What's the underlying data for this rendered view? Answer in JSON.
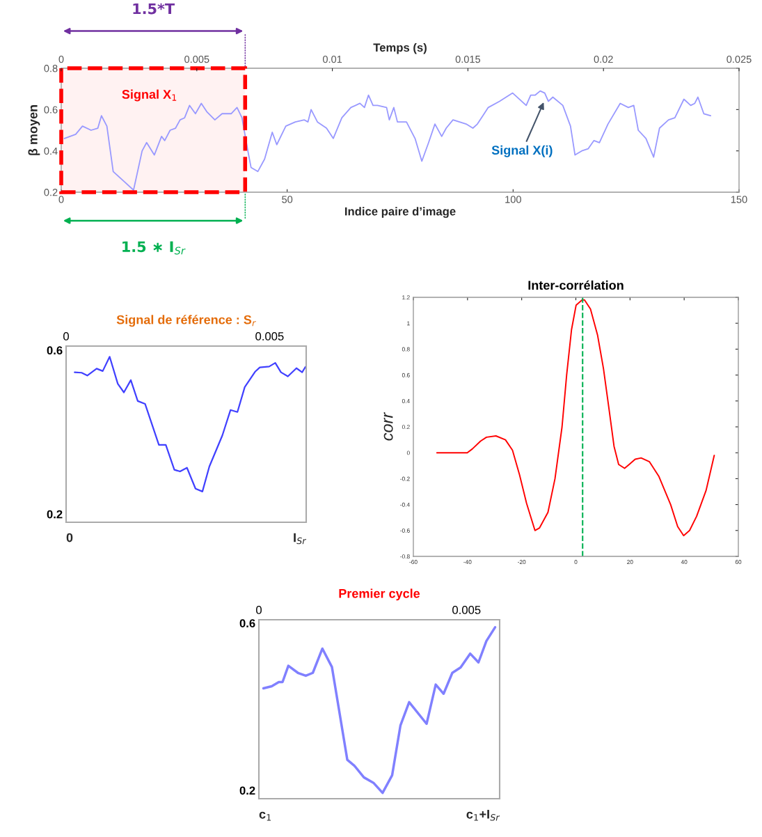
{
  "chart_data": [
    {
      "type": "line",
      "xlabel": "Indice paire d’image",
      "x2label": "Temps (s)",
      "ylabel": "β moyen",
      "x": [
        0.7,
        3.2,
        4.7,
        6.6,
        8.1,
        8.9,
        10.1,
        11.5,
        14,
        16,
        17.9,
        18.9,
        20.6,
        22.2,
        22.9,
        24.1,
        25.3,
        26.3,
        27.3,
        28.4,
        29.7,
        31,
        32.2,
        34,
        35.6,
        37.6,
        38.9,
        40,
        41.3,
        42,
        43.5,
        45,
        46.7,
        47.7,
        49.7,
        51.8,
        53.8,
        54.6,
        55.3,
        56.7,
        58.7,
        60.2,
        62.1,
        64.1,
        66.1,
        67.1,
        68,
        69,
        70,
        72,
        72.6,
        73.6,
        74.4,
        76.4,
        78.3,
        79.8,
        81.3,
        82.7,
        84.2,
        85.2,
        86.7,
        89.6,
        91.1,
        92.1,
        93.3,
        94.5,
        97,
        99.9,
        102.9,
        103.9,
        104.9,
        106,
        107,
        107.8,
        108.8,
        111,
        112.7,
        113.7,
        115.2,
        116.6,
        117.9,
        119.1,
        121,
        123.7,
        125.5,
        126.7,
        127.7,
        129.4,
        131.1,
        132.4,
        134.4,
        135.8,
        137.8,
        139.3,
        140.2,
        140.9,
        142.2,
        143.7
      ],
      "series": [
        {
          "color": "#9999ff",
          "values": [
            0.46,
            0.48,
            0.52,
            0.5,
            0.51,
            0.57,
            0.52,
            0.3,
            0.25,
            0.21,
            0.4,
            0.44,
            0.38,
            0.47,
            0.45,
            0.5,
            0.51,
            0.55,
            0.56,
            0.62,
            0.58,
            0.63,
            0.59,
            0.55,
            0.58,
            0.58,
            0.61,
            0.56,
            0.4,
            0.32,
            0.3,
            0.36,
            0.49,
            0.43,
            0.52,
            0.54,
            0.55,
            0.54,
            0.6,
            0.54,
            0.51,
            0.46,
            0.56,
            0.61,
            0.63,
            0.61,
            0.67,
            0.62,
            0.62,
            0.61,
            0.55,
            0.61,
            0.54,
            0.54,
            0.46,
            0.35,
            0.44,
            0.53,
            0.47,
            0.51,
            0.55,
            0.53,
            0.51,
            0.53,
            0.57,
            0.61,
            0.64,
            0.68,
            0.62,
            0.67,
            0.67,
            0.69,
            0.68,
            0.64,
            0.66,
            0.62,
            0.52,
            0.38,
            0.4,
            0.41,
            0.45,
            0.44,
            0.53,
            0.63,
            0.61,
            0.62,
            0.5,
            0.46,
            0.37,
            0.51,
            0.55,
            0.56,
            0.65,
            0.62,
            0.63,
            0.66,
            0.58,
            0.57
          ]
        }
      ],
      "xlim": [
        0,
        150
      ],
      "xticks": [
        0,
        50,
        100,
        150
      ],
      "x2lim": [
        0,
        0.025
      ],
      "x2ticks": [
        0,
        0.005,
        0.01,
        0.015,
        0.02,
        0.025
      ],
      "ylim": [
        0.2,
        0.8
      ],
      "yticks": [
        0.2,
        0.4,
        0.6,
        0.8
      ],
      "bands": [
        {
          "axis": "x",
          "from": 0,
          "to": 40.7,
          "label": "Signal X$_{1}$",
          "color": "#ff0000"
        }
      ],
      "annotations": [
        "1.5*T",
        "1.5 ∗ I$_{Sr}$",
        "Signal X(i)"
      ]
    },
    {
      "type": "line",
      "title": "Signal de référence : S$_{r}$",
      "x": [
        0.00021,
        0.00038,
        0.00052,
        0.00075,
        0.0009,
        0.00107,
        0.00127,
        0.00142,
        0.00159,
        0.00176,
        0.00194,
        0.00228,
        0.00245,
        0.00266,
        0.0028,
        0.00297,
        0.00318,
        0.00335,
        0.00352,
        0.00384,
        0.00404,
        0.00421,
        0.00439,
        0.00465,
        0.00476,
        0.00499,
        0.00514,
        0.00528,
        0.00545,
        0.00566,
        0.0058,
        0.00588
      ],
      "series": [
        {
          "color": "#4040ff",
          "values": [
            0.546,
            0.545,
            0.538,
            0.555,
            0.549,
            0.584,
            0.518,
            0.497,
            0.527,
            0.476,
            0.469,
            0.369,
            0.369,
            0.308,
            0.304,
            0.313,
            0.262,
            0.255,
            0.316,
            0.392,
            0.454,
            0.449,
            0.51,
            0.548,
            0.558,
            0.56,
            0.569,
            0.546,
            0.536,
            0.556,
            0.546,
            0.559
          ]
        }
      ],
      "xlim": [
        0,
        0.0059
      ],
      "xticks": [
        0,
        0.005
      ],
      "annotations": [
        "0",
        "I$_{Sr}$"
      ],
      "ylim": [
        0.18,
        0.61
      ],
      "yticks": [
        0.2,
        0.6
      ]
    },
    {
      "type": "line",
      "title": "Inter-corrélation",
      "ylabel": "corr",
      "x": [
        -51.3,
        -40.1,
        -38.2,
        -35.2,
        -33,
        -29.5,
        -26,
        -23.4,
        -20.8,
        -18.2,
        -15.1,
        -13.4,
        -10.3,
        -7.7,
        -5.1,
        -3.4,
        -1.6,
        0.1,
        2.3,
        3.2,
        5.4,
        8,
        10.2,
        12.3,
        14.1,
        15.8,
        18,
        19.7,
        21.9,
        24.1,
        27.2,
        30.6,
        35,
        37.6,
        39.8,
        42,
        44.6,
        48.1,
        51.1
      ],
      "series": [
        {
          "color": "#ff0000",
          "values": [
            0,
            0,
            0.03,
            0.09,
            0.12,
            0.13,
            0.1,
            0.02,
            -0.17,
            -0.39,
            -0.6,
            -0.58,
            -0.46,
            -0.2,
            0.2,
            0.6,
            0.95,
            1.14,
            1.18,
            1.18,
            1.11,
            0.91,
            0.65,
            0.33,
            0.05,
            -0.09,
            -0.12,
            -0.09,
            -0.05,
            -0.04,
            -0.07,
            -0.18,
            -0.4,
            -0.57,
            -0.64,
            -0.6,
            -0.49,
            -0.29,
            -0.02
          ]
        }
      ],
      "xlim": [
        -60,
        60
      ],
      "xticks": [
        -60,
        -40,
        -20,
        0,
        20,
        40,
        60
      ],
      "ylim": [
        -0.8,
        1.2
      ],
      "yticks": [
        -0.8,
        -0.6,
        -0.4,
        -0.2,
        0,
        0.2,
        0.4,
        0.6,
        0.8,
        1,
        1.2
      ],
      "ref_lines": [
        {
          "axis": "x",
          "value": 2.5,
          "color": "#00b050",
          "line_style": "dashed"
        }
      ]
    },
    {
      "type": "line",
      "title": "Premier cycle",
      "x": [
        0.00011,
        0.00031,
        0.00048,
        0.00057,
        0.00071,
        0.00094,
        0.00113,
        0.0013,
        0.00153,
        0.00176,
        0.00213,
        0.0023,
        0.00253,
        0.00276,
        0.00298,
        0.00321,
        0.00341,
        0.00362,
        0.00404,
        0.00426,
        0.00445,
        0.00466,
        0.00486,
        0.00509,
        0.00529,
        0.00548,
        0.00569
      ],
      "series": [
        {
          "color": "#8080ff",
          "values": [
            0.444,
            0.449,
            0.459,
            0.459,
            0.498,
            0.481,
            0.474,
            0.481,
            0.539,
            0.495,
            0.273,
            0.259,
            0.231,
            0.218,
            0.194,
            0.236,
            0.355,
            0.411,
            0.359,
            0.453,
            0.431,
            0.481,
            0.494,
            0.527,
            0.506,
            0.557,
            0.59
          ]
        }
      ],
      "xlim": [
        0,
        0.0058
      ],
      "xticks": [
        0,
        0.005
      ],
      "annotations": [
        "c$_{1}$",
        "c$_{1}$+I$_{Sr}$"
      ],
      "ylim": [
        0.18,
        0.608
      ],
      "yticks": [
        0.2,
        0.6
      ]
    }
  ]
}
